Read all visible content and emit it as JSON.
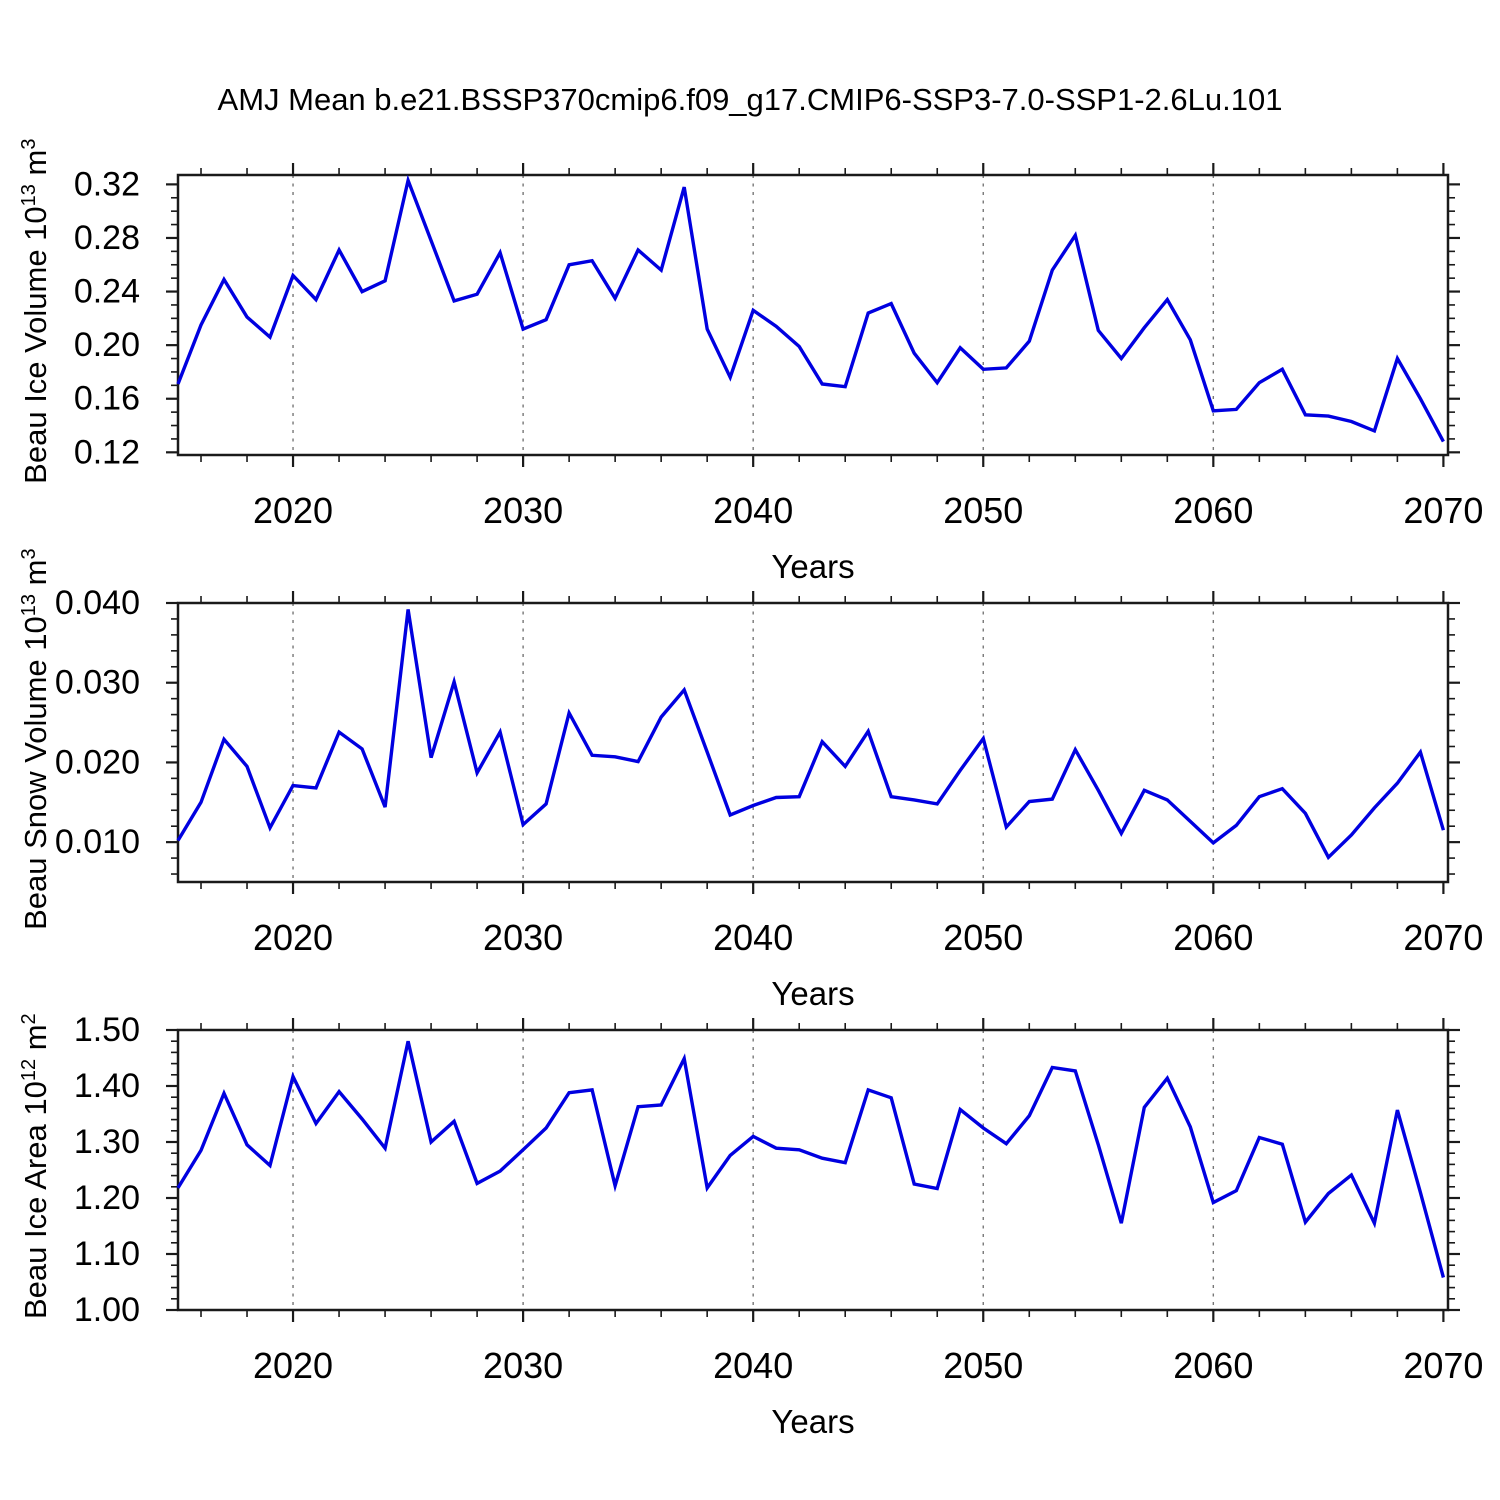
{
  "title": "AMJ Mean b.e21.BSSP370cmip6.f09_g17.CMIP6-SSP3-7.0-SSP1-2.6Lu.101",
  "line_color": "#0000E0",
  "axis_color": "#1a1a1a",
  "grid_color": "#777777",
  "chart_data": {
    "type": "line",
    "title": "AMJ Mean b.e21.BSSP370cmip6.f09_g17.CMIP6-SSP3-7.0-SSP1-2.6Lu.101",
    "xlabel": "Years",
    "x": [
      2015,
      2016,
      2017,
      2018,
      2019,
      2020,
      2021,
      2022,
      2023,
      2024,
      2025,
      2026,
      2027,
      2028,
      2029,
      2030,
      2031,
      2032,
      2033,
      2034,
      2035,
      2036,
      2037,
      2038,
      2039,
      2040,
      2041,
      2042,
      2043,
      2044,
      2045,
      2046,
      2047,
      2048,
      2049,
      2050,
      2051,
      2052,
      2053,
      2054,
      2055,
      2056,
      2057,
      2058,
      2059,
      2060,
      2061,
      2062,
      2063,
      2064,
      2065,
      2066,
      2067,
      2068,
      2069,
      2070
    ],
    "xlim": [
      2015,
      2070.2
    ],
    "xticks": [
      2020,
      2030,
      2040,
      2050,
      2060,
      2070
    ],
    "xminor_step": 2,
    "grid_years": [
      2020,
      2030,
      2040,
      2050,
      2060
    ],
    "grid_style": "vertical-dashed",
    "legend_position": "none",
    "panels": [
      {
        "id": "ice-volume",
        "ylabel": "Beau Ice Volume 10¹³ m³",
        "ylabel_parts": [
          "Beau Ice Volume 10",
          "13",
          " m",
          "3"
        ],
        "ylim": [
          0.118,
          0.327
        ],
        "yticks": [
          0.12,
          0.16,
          0.2,
          0.24,
          0.28,
          0.32
        ],
        "ytick_labels": [
          "0.12",
          "0.16",
          "0.20",
          "0.24",
          "0.28",
          "0.32"
        ],
        "yminor_step": 0.01,
        "series": [
          {
            "name": "Beau Ice Volume",
            "values": [
              0.171,
              0.215,
              0.249,
              0.221,
              0.206,
              0.252,
              0.234,
              0.271,
              0.24,
              0.248,
              0.323,
              0.278,
              0.233,
              0.238,
              0.269,
              0.212,
              0.219,
              0.26,
              0.263,
              0.235,
              0.271,
              0.256,
              0.318,
              0.212,
              0.176,
              0.226,
              0.214,
              0.199,
              0.171,
              0.169,
              0.224,
              0.231,
              0.194,
              0.172,
              0.198,
              0.182,
              0.183,
              0.203,
              0.256,
              0.282,
              0.211,
              0.19,
              0.213,
              0.234,
              0.204,
              0.151,
              0.152,
              0.172,
              0.182,
              0.148,
              0.147,
              0.143,
              0.136,
              0.19,
              0.16,
              0.128
            ]
          }
        ]
      },
      {
        "id": "snow-volume",
        "ylabel": "Beau Snow Volume 10¹³ m³",
        "ylabel_parts": [
          "Beau Snow Volume 10",
          "13",
          " m",
          "3"
        ],
        "ylim": [
          0.005,
          0.04
        ],
        "yticks": [
          0.01,
          0.02,
          0.03,
          0.04
        ],
        "ytick_labels": [
          "0.010",
          "0.020",
          "0.030",
          "0.040"
        ],
        "yminor_step": 0.002,
        "series": [
          {
            "name": "Beau Snow Volume",
            "values": [
              0.0102,
              0.015,
              0.0229,
              0.0195,
              0.0118,
              0.0171,
              0.0168,
              0.0238,
              0.0217,
              0.0144,
              0.0392,
              0.0206,
              0.0301,
              0.0187,
              0.0238,
              0.0122,
              0.0148,
              0.0262,
              0.0209,
              0.0207,
              0.0201,
              0.0257,
              0.0291,
              0.0213,
              0.0134,
              0.0146,
              0.0156,
              0.0157,
              0.0226,
              0.0195,
              0.0239,
              0.0157,
              0.0153,
              0.0148,
              0.019,
              0.023,
              0.0119,
              0.0151,
              0.0154,
              0.0216,
              0.0165,
              0.0111,
              0.0165,
              0.0153,
              0.0126,
              0.0099,
              0.0121,
              0.0157,
              0.0167,
              0.0136,
              0.0081,
              0.0109,
              0.0143,
              0.0174,
              0.0213,
              0.0115
            ]
          }
        ]
      },
      {
        "id": "ice-area",
        "ylabel": "Beau Ice Area 10¹² m²",
        "ylabel_parts": [
          "Beau Ice Area 10",
          "12",
          " m",
          "2"
        ],
        "ylim": [
          1.0,
          1.5
        ],
        "yticks": [
          1.0,
          1.1,
          1.2,
          1.3,
          1.4,
          1.5
        ],
        "ytick_labels": [
          "1.00",
          "1.10",
          "1.20",
          "1.30",
          "1.40",
          "1.50"
        ],
        "yminor_step": 0.02,
        "series": [
          {
            "name": "Beau Ice Area",
            "values": [
              1.218,
              1.285,
              1.387,
              1.295,
              1.258,
              1.417,
              1.333,
              1.39,
              1.341,
              1.289,
              1.48,
              1.3,
              1.337,
              1.226,
              1.248,
              1.286,
              1.325,
              1.388,
              1.393,
              1.222,
              1.363,
              1.366,
              1.449,
              1.218,
              1.276,
              1.31,
              1.289,
              1.286,
              1.271,
              1.263,
              1.393,
              1.379,
              1.225,
              1.217,
              1.358,
              1.325,
              1.297,
              1.347,
              1.433,
              1.427,
              1.295,
              1.155,
              1.362,
              1.414,
              1.327,
              1.192,
              1.213,
              1.308,
              1.296,
              1.157,
              1.208,
              1.241,
              1.155,
              1.357,
              1.21,
              1.058
            ]
          }
        ]
      }
    ]
  }
}
